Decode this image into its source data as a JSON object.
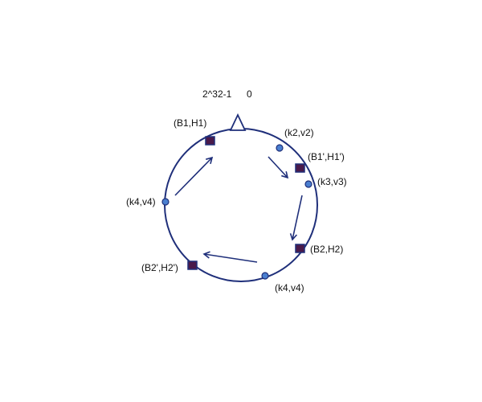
{
  "ring": {
    "top_labels": {
      "max": "2^32-1",
      "zero": "0"
    },
    "colors": {
      "ring": "#1f2f7a",
      "server_fill": "#4a1a4a",
      "key_fill": "#4a7fd0"
    }
  },
  "servers": [
    {
      "id": "b1",
      "label": "(B1,H1)"
    },
    {
      "id": "b1p",
      "label": "(B1',H1')"
    },
    {
      "id": "b2",
      "label": "(B2,H2)"
    },
    {
      "id": "b2p",
      "label": "(B2',H2')"
    }
  ],
  "keys": [
    {
      "id": "k2",
      "label": "(k2,v2)"
    },
    {
      "id": "k3",
      "label": "(k3,v3)"
    },
    {
      "id": "k4a",
      "label": "(k4,v4)"
    },
    {
      "id": "k4b",
      "label": "(k4,v4)"
    }
  ]
}
